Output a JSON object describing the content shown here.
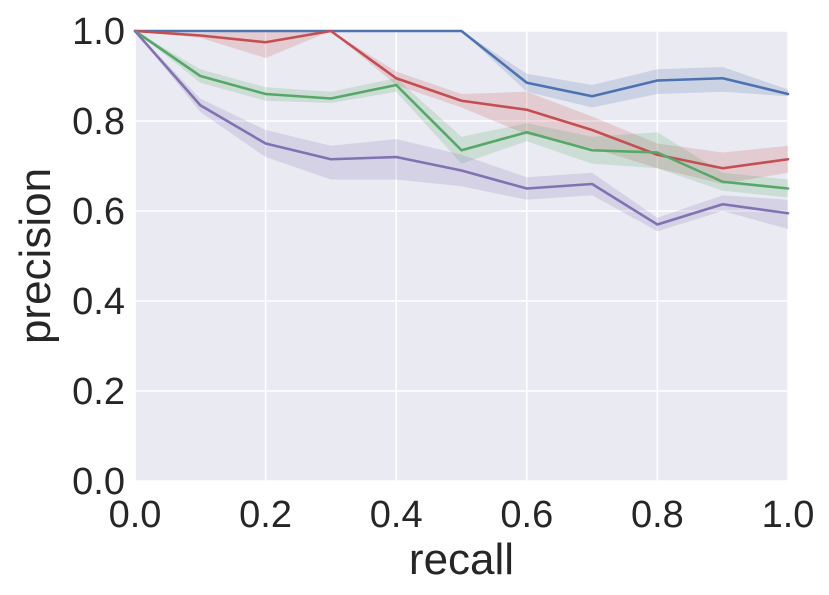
{
  "chart_data": {
    "type": "line",
    "title": "",
    "xlabel": "recall",
    "ylabel": "precision",
    "xlim": [
      0.0,
      1.0
    ],
    "ylim": [
      0.0,
      1.0
    ],
    "grid": true,
    "legend": "none",
    "x_ticks": [
      "0.0",
      "0.2",
      "0.4",
      "0.6",
      "0.8",
      "1.0"
    ],
    "y_ticks": [
      "0.0",
      "0.2",
      "0.4",
      "0.6",
      "0.8",
      "1.0"
    ],
    "background_color": "#eaeaf2",
    "x": [
      0.0,
      0.1,
      0.2,
      0.3,
      0.4,
      0.5,
      0.6,
      0.7,
      0.8,
      0.9,
      1.0
    ],
    "series": [
      {
        "color": "#4c72b0",
        "values": [
          1.0,
          1.0,
          1.0,
          1.0,
          1.0,
          1.0,
          0.885,
          0.855,
          0.89,
          0.895,
          0.86
        ],
        "lower": [
          1.0,
          1.0,
          1.0,
          1.0,
          1.0,
          1.0,
          0.865,
          0.83,
          0.86,
          0.865,
          0.855
        ],
        "upper": [
          1.0,
          1.0,
          1.0,
          1.0,
          1.0,
          1.0,
          0.905,
          0.88,
          0.915,
          0.92,
          0.87
        ]
      },
      {
        "color": "#c44e52",
        "values": [
          1.0,
          0.99,
          0.975,
          1.0,
          0.895,
          0.845,
          0.825,
          0.78,
          0.725,
          0.695,
          0.715
        ],
        "lower": [
          1.0,
          0.985,
          0.94,
          1.0,
          0.88,
          0.83,
          0.77,
          0.74,
          0.695,
          0.66,
          0.685
        ],
        "upper": [
          1.0,
          0.995,
          1.0,
          1.0,
          0.91,
          0.86,
          0.865,
          0.81,
          0.75,
          0.73,
          0.745
        ]
      },
      {
        "color": "#55a868",
        "values": [
          1.0,
          0.9,
          0.86,
          0.85,
          0.88,
          0.735,
          0.775,
          0.735,
          0.73,
          0.665,
          0.65
        ],
        "lower": [
          1.0,
          0.885,
          0.845,
          0.84,
          0.865,
          0.705,
          0.755,
          0.705,
          0.695,
          0.645,
          0.63
        ],
        "upper": [
          1.0,
          0.915,
          0.875,
          0.865,
          0.895,
          0.765,
          0.795,
          0.765,
          0.775,
          0.685,
          0.67
        ]
      },
      {
        "color": "#8172b2",
        "values": [
          1.0,
          0.835,
          0.75,
          0.715,
          0.72,
          0.69,
          0.65,
          0.66,
          0.57,
          0.615,
          0.595
        ],
        "lower": [
          1.0,
          0.82,
          0.72,
          0.67,
          0.67,
          0.655,
          0.625,
          0.635,
          0.555,
          0.6,
          0.56
        ],
        "upper": [
          1.0,
          0.85,
          0.78,
          0.745,
          0.76,
          0.725,
          0.675,
          0.685,
          0.585,
          0.635,
          0.625
        ]
      }
    ]
  }
}
